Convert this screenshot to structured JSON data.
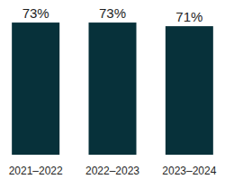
{
  "chart_data": {
    "type": "bar",
    "categories": [
      "2021–2022",
      "2022–2023",
      "2023–2024"
    ],
    "values": [
      73,
      73,
      71
    ],
    "value_labels": [
      "73%",
      "73%",
      "71%"
    ],
    "color": "#07313a",
    "ylim": [
      0,
      80
    ],
    "data_labels": true,
    "tick_labels": "x",
    "grid": false
  }
}
